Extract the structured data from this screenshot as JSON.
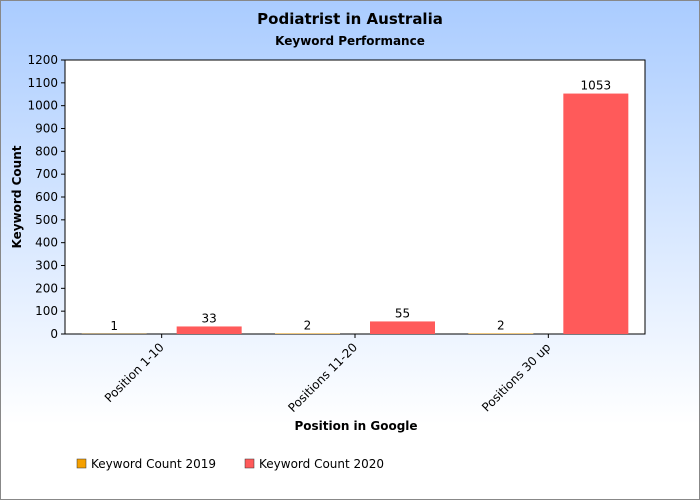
{
  "chart_data": {
    "type": "bar",
    "title": "Podiatrist in Australia",
    "subtitle": "Keyword Performance",
    "xlabel": "Position in Google",
    "ylabel": "Keyword Count",
    "categories": [
      "Position 1-10",
      "Positions 11-20",
      "Positions 30 up"
    ],
    "series": [
      {
        "name": "Keyword Count 2019",
        "values": [
          1,
          2,
          2
        ],
        "color": "#f5a000"
      },
      {
        "name": "Keyword Count 2020",
        "values": [
          33,
          55,
          1053
        ],
        "color": "#ff5a5a"
      }
    ],
    "ylim": [
      0,
      1200
    ],
    "yticks": [
      0,
      100,
      200,
      300,
      400,
      500,
      600,
      700,
      800,
      900,
      1000,
      1100,
      1200
    ],
    "grid": false,
    "legend": "bottom-left",
    "colors": {
      "background_top": "#aaccff",
      "background_bottom": "#ffffff",
      "plot_bg": "#ffffff"
    }
  }
}
